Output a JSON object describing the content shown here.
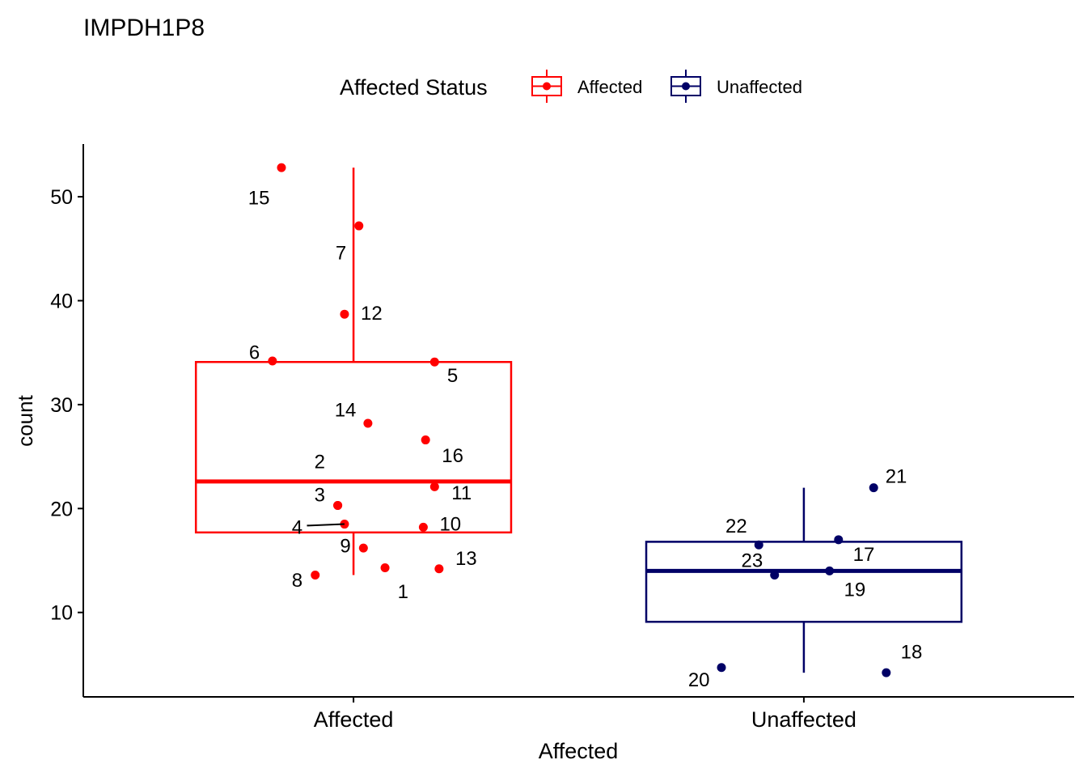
{
  "chart_data": {
    "type": "boxplot",
    "title": "IMPDH1P8",
    "xlabel": "Affected",
    "ylabel": "count",
    "ylim": [
      3,
      55
    ],
    "yticks": [
      10,
      20,
      30,
      40,
      50
    ],
    "categories": [
      "Affected",
      "Unaffected"
    ],
    "legend": {
      "title": "Affected Status",
      "position": "top",
      "entries": [
        {
          "label": "Affected",
          "color": "#ff0000"
        },
        {
          "label": "Unaffected",
          "color": "#000066"
        }
      ]
    },
    "boxes": [
      {
        "category": "Affected",
        "color": "#ff0000",
        "q1": 17.7,
        "median": 22.6,
        "q3": 34.1,
        "whisker_low": 13.6,
        "whisker_high": 52.8
      },
      {
        "category": "Unaffected",
        "color": "#000066",
        "q1": 9.1,
        "median": 14.0,
        "q3": 16.8,
        "whisker_low": 4.2,
        "whisker_high": 22.0
      }
    ],
    "points": [
      {
        "id": "1",
        "category": "Affected",
        "jitter": 0.07,
        "y": 14.3,
        "label_dx": 0.04,
        "label_y": 12.0
      },
      {
        "id": "2",
        "category": "Affected",
        "jitter": -0.035,
        "y": 20.3,
        "label_dx": -0.04,
        "label_y": 24.5
      },
      {
        "id": "3",
        "category": "Affected",
        "jitter": -0.035,
        "y": 20.3,
        "label_dx": -0.04,
        "label_y": 21.3
      },
      {
        "id": "4",
        "category": "Affected",
        "jitter": -0.02,
        "y": 18.5,
        "label_dx": -0.105,
        "label_y": 18.2,
        "leader": true
      },
      {
        "id": "5",
        "category": "Affected",
        "jitter": 0.18,
        "y": 34.1,
        "label_dx": 0.04,
        "label_y": 32.8
      },
      {
        "id": "6",
        "category": "Affected",
        "jitter": -0.18,
        "y": 34.2,
        "label_dx": -0.04,
        "label_y": 35.0
      },
      {
        "id": "7",
        "category": "Affected",
        "jitter": 0.012,
        "y": 47.2,
        "label_dx": -0.04,
        "label_y": 44.6
      },
      {
        "id": "8",
        "category": "Affected",
        "jitter": -0.085,
        "y": 13.6,
        "label_dx": -0.04,
        "label_y": 13.1
      },
      {
        "id": "9",
        "category": "Affected",
        "jitter": 0.022,
        "y": 16.2,
        "label_dx": -0.04,
        "label_y": 16.4
      },
      {
        "id": "10",
        "category": "Affected",
        "jitter": 0.155,
        "y": 18.2,
        "label_dx": 0.06,
        "label_y": 18.5
      },
      {
        "id": "11",
        "category": "Affected",
        "jitter": 0.18,
        "y": 22.1,
        "label_dx": 0.06,
        "label_y": 21.5
      },
      {
        "id": "12",
        "category": "Affected",
        "jitter": -0.02,
        "y": 38.7,
        "label_dx": 0.06,
        "label_y": 38.8
      },
      {
        "id": "13",
        "category": "Affected",
        "jitter": 0.19,
        "y": 14.2,
        "label_dx": 0.06,
        "label_y": 15.2
      },
      {
        "id": "14",
        "category": "Affected",
        "jitter": 0.032,
        "y": 28.2,
        "label_dx": -0.05,
        "label_y": 29.5
      },
      {
        "id": "15",
        "category": "Affected",
        "jitter": -0.16,
        "y": 52.8,
        "label_dx": -0.05,
        "label_y": 49.9
      },
      {
        "id": "16",
        "category": "Affected",
        "jitter": 0.16,
        "y": 26.6,
        "label_dx": 0.06,
        "label_y": 25.1
      },
      {
        "id": "17",
        "category": "Unaffected",
        "jitter": 0.077,
        "y": 17.0,
        "label_dx": 0.056,
        "label_y": 15.6
      },
      {
        "id": "18",
        "category": "Unaffected",
        "jitter": 0.183,
        "y": 4.2,
        "label_dx": 0.056,
        "label_y": 6.2
      },
      {
        "id": "19",
        "category": "Unaffected",
        "jitter": 0.057,
        "y": 14.0,
        "label_dx": 0.056,
        "label_y": 12.2
      },
      {
        "id": "20",
        "category": "Unaffected",
        "jitter": -0.183,
        "y": 4.7,
        "label_dx": -0.05,
        "label_y": 3.5
      },
      {
        "id": "21",
        "category": "Unaffected",
        "jitter": 0.155,
        "y": 22.0,
        "label_dx": 0.05,
        "label_y": 23.1
      },
      {
        "id": "22",
        "category": "Unaffected",
        "jitter": -0.1,
        "y": 16.5,
        "label_dx": -0.05,
        "label_y": 18.3
      },
      {
        "id": "23",
        "category": "Unaffected",
        "jitter": -0.065,
        "y": 13.6,
        "label_dx": -0.05,
        "label_y": 15.0
      }
    ]
  }
}
